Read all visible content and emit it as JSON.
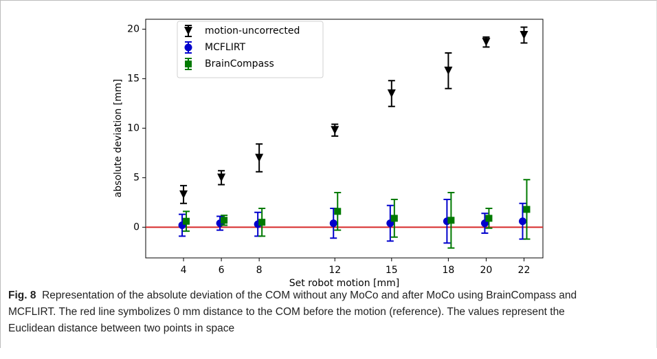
{
  "chart_data": {
    "type": "errorbar",
    "xlabel": "Set robot motion [mm]",
    "ylabel": "absolute deviation [mm]",
    "x": [
      4,
      6,
      8,
      12,
      15,
      18,
      20,
      22
    ],
    "xlim": [
      2,
      23
    ],
    "xticks": [
      4,
      6,
      8,
      12,
      15,
      18,
      20,
      22
    ],
    "ylim": [
      -3.1,
      21
    ],
    "yticks": [
      0,
      5,
      10,
      15,
      20
    ],
    "reference_line": {
      "value": 0,
      "color": "#d62728"
    },
    "legend": "upper left",
    "series": [
      {
        "name": "motion-uncorrected",
        "color": "#000000",
        "marker": "v",
        "values": [
          3.3,
          5.0,
          7.0,
          9.8,
          13.5,
          15.8,
          18.7,
          19.4
        ],
        "errors": [
          0.9,
          0.7,
          1.4,
          0.6,
          1.3,
          1.8,
          0.5,
          0.8
        ]
      },
      {
        "name": "MCFLIRT",
        "color": "#0000cc",
        "marker": "o",
        "values": [
          0.2,
          0.4,
          0.3,
          0.4,
          0.4,
          0.6,
          0.4,
          0.6
        ],
        "errors": [
          1.1,
          0.7,
          1.2,
          1.5,
          1.8,
          2.2,
          1.0,
          1.8
        ]
      },
      {
        "name": "BrainCompass",
        "color": "#007a00",
        "marker": "s",
        "values": [
          0.6,
          0.7,
          0.5,
          1.6,
          0.9,
          0.7,
          0.9,
          1.8
        ],
        "errors": [
          1.0,
          0.5,
          1.4,
          1.9,
          1.9,
          2.8,
          1.0,
          3.0
        ]
      }
    ]
  },
  "caption": {
    "label": "Fig. 8",
    "text": "Representation of the absolute deviation of the COM without any MoCo and after MoCo using BrainCompass and MCFLIRT. The red line symbolizes 0 mm distance to the COM before the motion (reference). The values represent the Euclidean distance between two points in space"
  }
}
